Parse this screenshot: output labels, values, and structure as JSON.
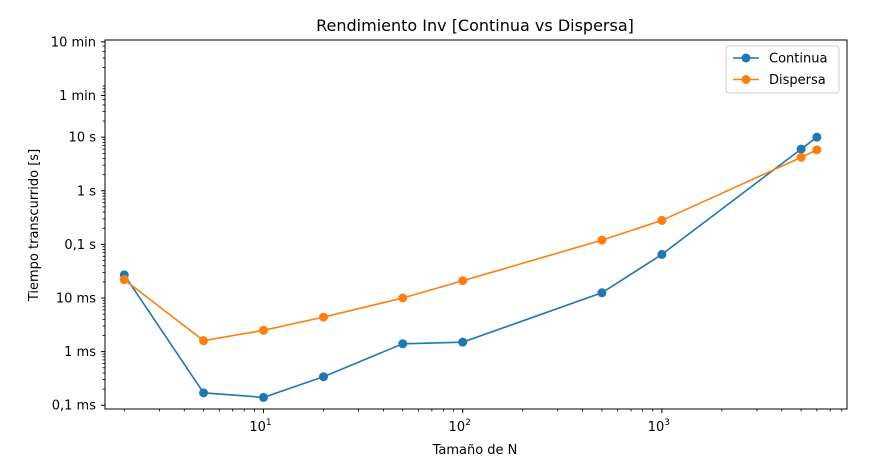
{
  "chart_data": {
    "type": "line",
    "title": "Rendimiento Inv [Continua vs Dispersa]",
    "xlabel": "Tamaño de N",
    "ylabel": "Tiempo transcurrido [s]",
    "x_scale": "log",
    "y_scale": "log",
    "xlim": [
      1.6,
      8500
    ],
    "ylim": [
      8.5e-05,
      650
    ],
    "x_ticks": [
      {
        "value": 10,
        "base": "10",
        "exp": "1"
      },
      {
        "value": 100,
        "base": "10",
        "exp": "2"
      },
      {
        "value": 1000,
        "base": "10",
        "exp": "3"
      }
    ],
    "y_ticks": [
      {
        "value": 0.0001,
        "label": "0,1 ms"
      },
      {
        "value": 0.001,
        "label": "1 ms"
      },
      {
        "value": 0.01,
        "label": "10 ms"
      },
      {
        "value": 0.1,
        "label": "0,1 s"
      },
      {
        "value": 1,
        "label": "1 s"
      },
      {
        "value": 10,
        "label": "10 s"
      },
      {
        "value": 60,
        "label": "1 min"
      },
      {
        "value": 600,
        "label": "10 min"
      }
    ],
    "series": [
      {
        "name": "Continua",
        "color": "#1f77b4",
        "x": [
          2,
          5,
          10,
          20,
          50,
          100,
          500,
          1000,
          5000,
          6000
        ],
        "y": [
          0.027,
          0.00017,
          0.00014,
          0.00034,
          0.0014,
          0.0015,
          0.0125,
          0.065,
          6,
          10
        ]
      },
      {
        "name": "Dispersa",
        "color": "#ff7f0e",
        "x": [
          2,
          5,
          10,
          20,
          50,
          100,
          500,
          1000,
          5000,
          6000
        ],
        "y": [
          0.022,
          0.0016,
          0.0025,
          0.0044,
          0.01,
          0.021,
          0.12,
          0.28,
          4.2,
          5.8
        ]
      }
    ],
    "legend": {
      "position": "top-right"
    },
    "grid": false
  }
}
